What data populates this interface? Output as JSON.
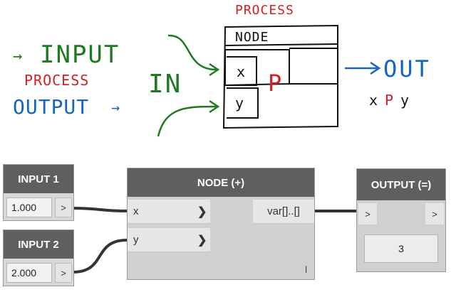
{
  "sketch": {
    "top_label": "PROCESS",
    "input_label": "INPUT",
    "process_label": "PROCESS",
    "output_label": "OUTPUT",
    "in_label": "IN",
    "node_label": "NODE",
    "x_label": "x",
    "y_label": "y",
    "p_label": "P",
    "out_label": "OUT",
    "formula_x": "x",
    "formula_p": "P",
    "formula_y": "y",
    "colors": {
      "green": "#1f7a1f",
      "red": "#d42020",
      "blue": "#1565c0",
      "black": "#111111"
    }
  },
  "graph": {
    "input1": {
      "title": "INPUT 1",
      "value": "1.000",
      "port": ">"
    },
    "input2": {
      "title": "INPUT 2",
      "value": "2.000",
      "port": ">"
    },
    "node": {
      "title": "NODE (+)",
      "in_x": "x",
      "in_y": "y",
      "out": "var[]..[]",
      "footer": "l"
    },
    "output": {
      "title": "OUTPUT (=)",
      "in_port": ">",
      "out_port": ">",
      "value": "3"
    }
  }
}
